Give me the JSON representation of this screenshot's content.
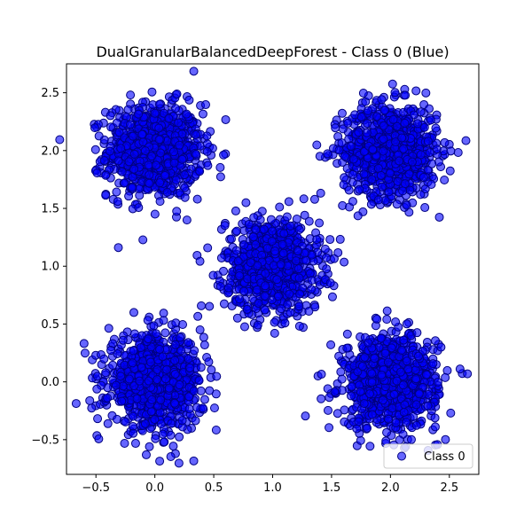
{
  "chart_data": {
    "type": "scatter",
    "title": "DualGranularBalancedDeepForest - Class 0 (Blue)",
    "xlabel": "",
    "ylabel": "",
    "xlim": [
      -0.75,
      2.75
    ],
    "ylim": [
      -0.8,
      2.75
    ],
    "xticks": [
      -0.5,
      0.0,
      0.5,
      1.0,
      1.5,
      2.0,
      2.5
    ],
    "yticks": [
      -0.5,
      0.0,
      0.5,
      1.0,
      1.5,
      2.0,
      2.5
    ],
    "xtick_labels": [
      "−0.5",
      "0.0",
      "0.5",
      "1.0",
      "1.5",
      "2.0",
      "2.5"
    ],
    "ytick_labels": [
      "−0.5",
      "0.0",
      "0.5",
      "1.0",
      "1.5",
      "2.0",
      "2.5"
    ],
    "grid": false,
    "legend": {
      "position": "lower-right",
      "entries": [
        {
          "label": "Class 0"
        }
      ]
    },
    "series": [
      {
        "name": "Class 0",
        "color": "#0000ff",
        "edge_color": "#000080",
        "clusters": [
          {
            "center": [
              0.0,
              2.0
            ],
            "spread": 0.2,
            "count": 900
          },
          {
            "center": [
              2.0,
              2.0
            ],
            "spread": 0.2,
            "count": 900
          },
          {
            "center": [
              1.0,
              1.0
            ],
            "spread": 0.2,
            "count": 900
          },
          {
            "center": [
              0.0,
              0.0
            ],
            "spread": 0.2,
            "count": 900
          },
          {
            "center": [
              2.0,
              0.0
            ],
            "spread": 0.2,
            "count": 900
          }
        ]
      }
    ]
  }
}
